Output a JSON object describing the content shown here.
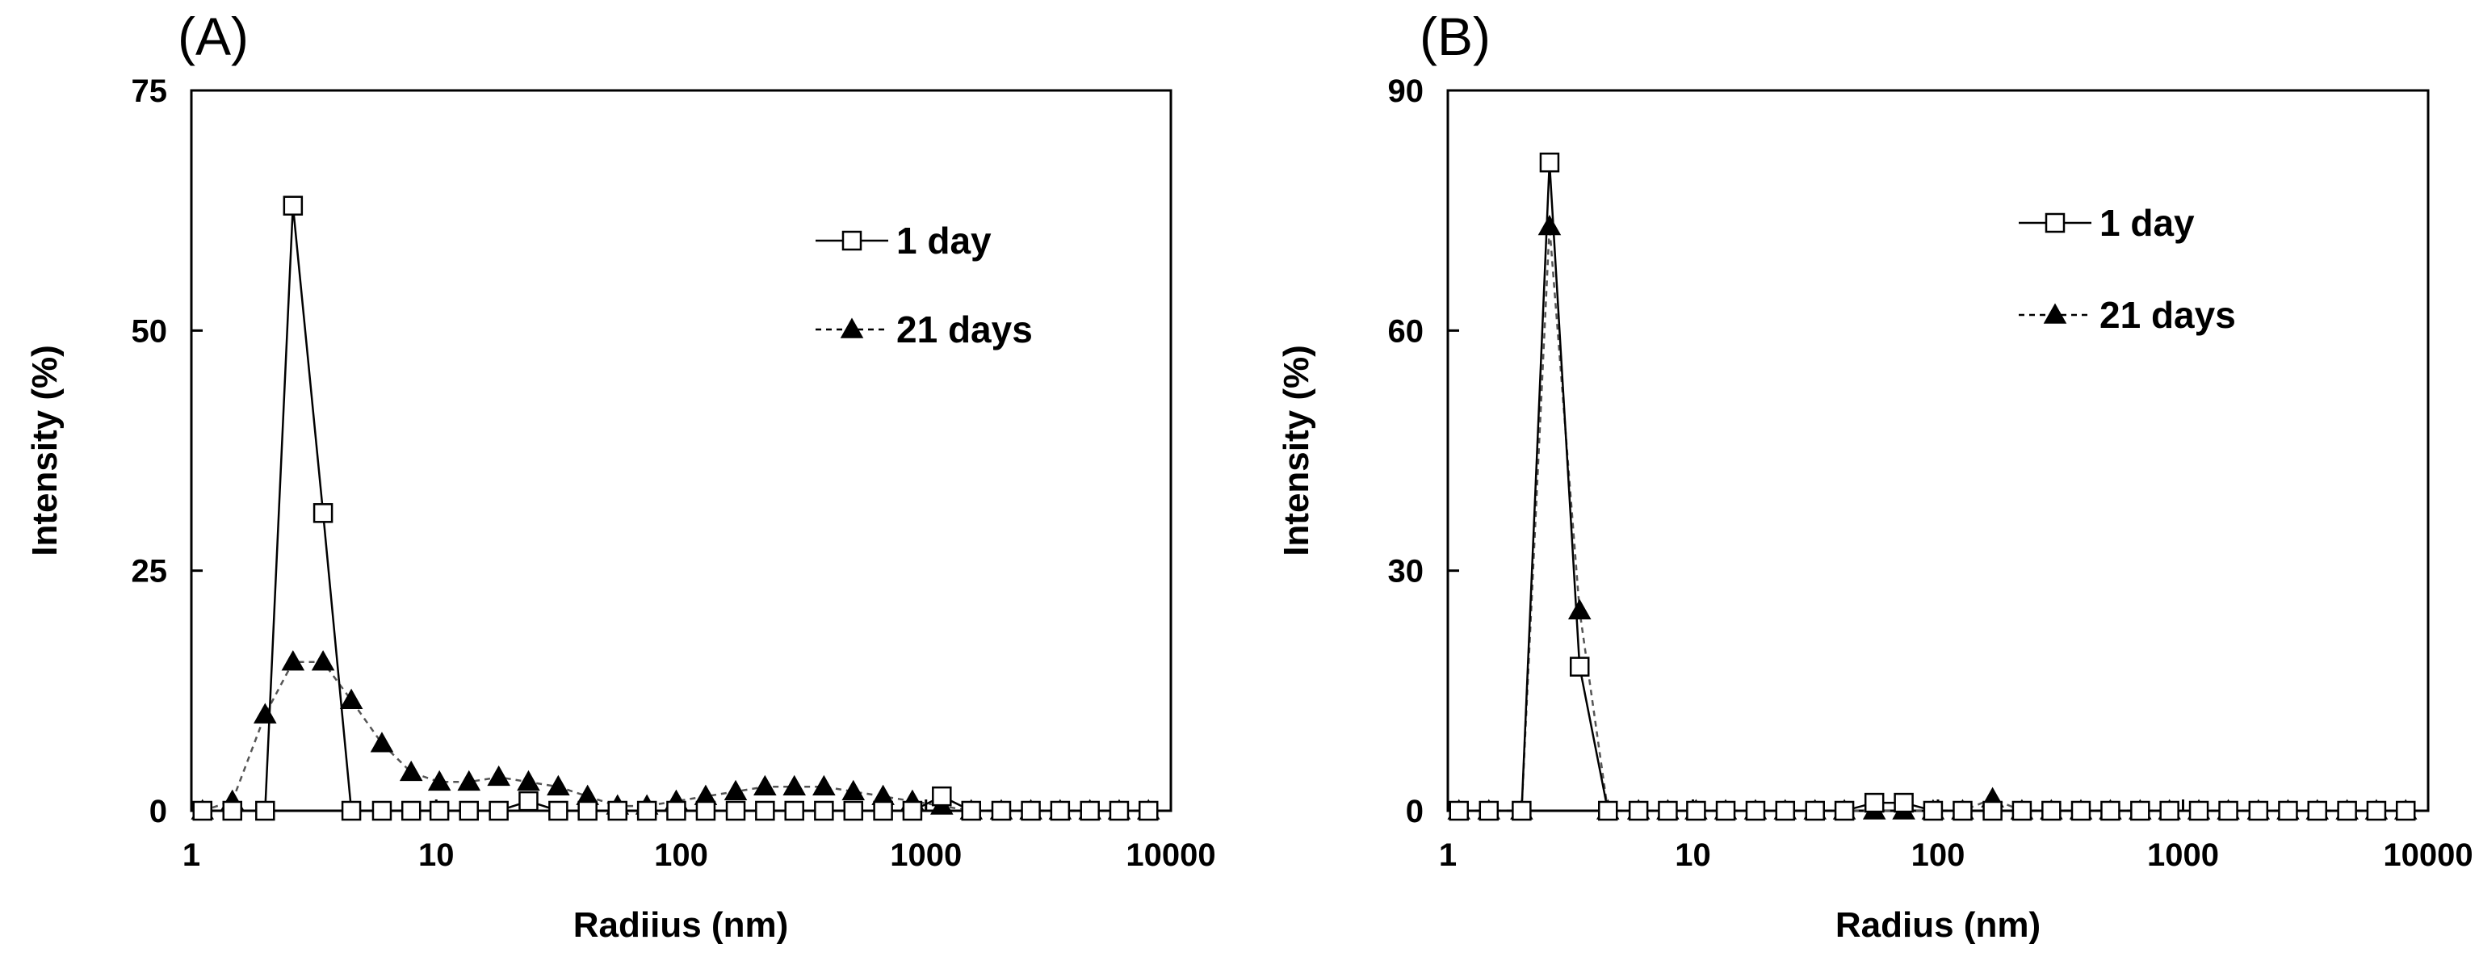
{
  "chart_data": [
    {
      "panel_label": "(A)",
      "type": "scatter",
      "x_scale": "log",
      "xlabel": "Radiius (nm)",
      "ylabel": "Intensity (%)",
      "xlim": [
        1,
        10000
      ],
      "ylim": [
        0,
        75
      ],
      "x_ticks": [
        1,
        10,
        100,
        1000,
        10000
      ],
      "x_tick_labels": [
        "1",
        "10",
        "100",
        "1000",
        "10000"
      ],
      "y_ticks": [
        0,
        25,
        50,
        75
      ],
      "y_tick_labels": [
        "0",
        "25",
        "50",
        "75"
      ],
      "legend_position": "top-right",
      "series": [
        {
          "name": "1 day",
          "marker": "open-square",
          "line": "solid",
          "x": [
            1.11,
            1.47,
            2.0,
            2.6,
            3.45,
            4.5,
            6.0,
            7.9,
            10.3,
            13.6,
            18.0,
            23.8,
            31.5,
            41.5,
            55.0,
            72.5,
            95.5,
            126,
            167,
            220,
            290,
            383,
            505,
            668,
            880,
            1160,
            1530,
            2030,
            2680,
            3530,
            4670,
            6150,
            8100
          ],
          "y": [
            0,
            0,
            0,
            63,
            31,
            0,
            0,
            0,
            0,
            0,
            0,
            1,
            0,
            0,
            0,
            0,
            0,
            0,
            0,
            0,
            0,
            0,
            0,
            0,
            0,
            1.5,
            0,
            0,
            0,
            0,
            0,
            0,
            0
          ]
        },
        {
          "name": "21 days",
          "marker": "filled-triangle",
          "line": "dashed",
          "x": [
            1.11,
            1.47,
            2.0,
            2.6,
            3.45,
            4.5,
            6.0,
            7.9,
            10.3,
            13.6,
            18.0,
            23.8,
            31.5,
            41.5,
            55.0,
            72.5,
            95.5,
            126,
            167,
            220,
            290,
            383,
            505,
            668,
            880,
            1160,
            1530,
            2030,
            2680,
            3530,
            4670,
            6150,
            8100
          ],
          "y": [
            0,
            1,
            10,
            15.5,
            15.5,
            11.5,
            7,
            4,
            3,
            3,
            3.5,
            3,
            2.5,
            1.5,
            0.5,
            0.5,
            1,
            1.5,
            2,
            2.5,
            2.5,
            2.5,
            2,
            1.5,
            1,
            0.5,
            0,
            0,
            0,
            0,
            0,
            0,
            0
          ]
        }
      ]
    },
    {
      "panel_label": "(B)",
      "type": "scatter",
      "x_scale": "log",
      "xlabel": "Radius (nm)",
      "ylabel": "Intensity (%)",
      "xlim": [
        1,
        10000
      ],
      "ylim": [
        0,
        90
      ],
      "x_ticks": [
        1,
        10,
        100,
        1000,
        10000
      ],
      "x_tick_labels": [
        "1",
        "10",
        "100",
        "1000",
        "10000"
      ],
      "y_ticks": [
        0,
        30,
        60,
        90
      ],
      "y_tick_labels": [
        "0",
        "30",
        "60",
        "90"
      ],
      "legend_position": "top-right",
      "series": [
        {
          "name": "1 day",
          "marker": "open-square",
          "line": "solid",
          "x": [
            1.11,
            1.47,
            2.0,
            2.6,
            3.45,
            4.5,
            6.0,
            7.9,
            10.3,
            13.6,
            18.0,
            23.8,
            31.5,
            41.5,
            55.0,
            72.5,
            95.5,
            126,
            167,
            220,
            290,
            383,
            505,
            668,
            880,
            1160,
            1530,
            2030,
            2680,
            3530,
            4670,
            6150,
            8100
          ],
          "y": [
            0,
            0,
            0,
            81,
            18,
            0,
            0,
            0,
            0,
            0,
            0,
            0,
            0,
            0,
            1,
            1,
            0,
            0,
            0,
            0,
            0,
            0,
            0,
            0,
            0,
            0,
            0,
            0,
            0,
            0,
            0,
            0,
            0
          ]
        },
        {
          "name": "21 days",
          "marker": "filled-triangle",
          "line": "dashed",
          "x": [
            1.11,
            1.47,
            2.0,
            2.6,
            3.45,
            4.5,
            6.0,
            7.9,
            10.3,
            13.6,
            18.0,
            23.8,
            31.5,
            41.5,
            55.0,
            72.5,
            95.5,
            126,
            167,
            220,
            290,
            383,
            505,
            668,
            880,
            1160,
            1530,
            2030,
            2680,
            3530,
            4670,
            6150,
            8100
          ],
          "y": [
            0,
            0,
            0,
            73,
            25,
            0,
            0,
            0,
            0,
            0,
            0,
            0,
            0,
            0,
            0,
            0,
            0,
            0,
            1.5,
            0,
            0,
            0,
            0,
            0,
            0,
            0,
            0,
            0,
            0,
            0,
            0,
            0,
            0
          ]
        }
      ]
    }
  ]
}
